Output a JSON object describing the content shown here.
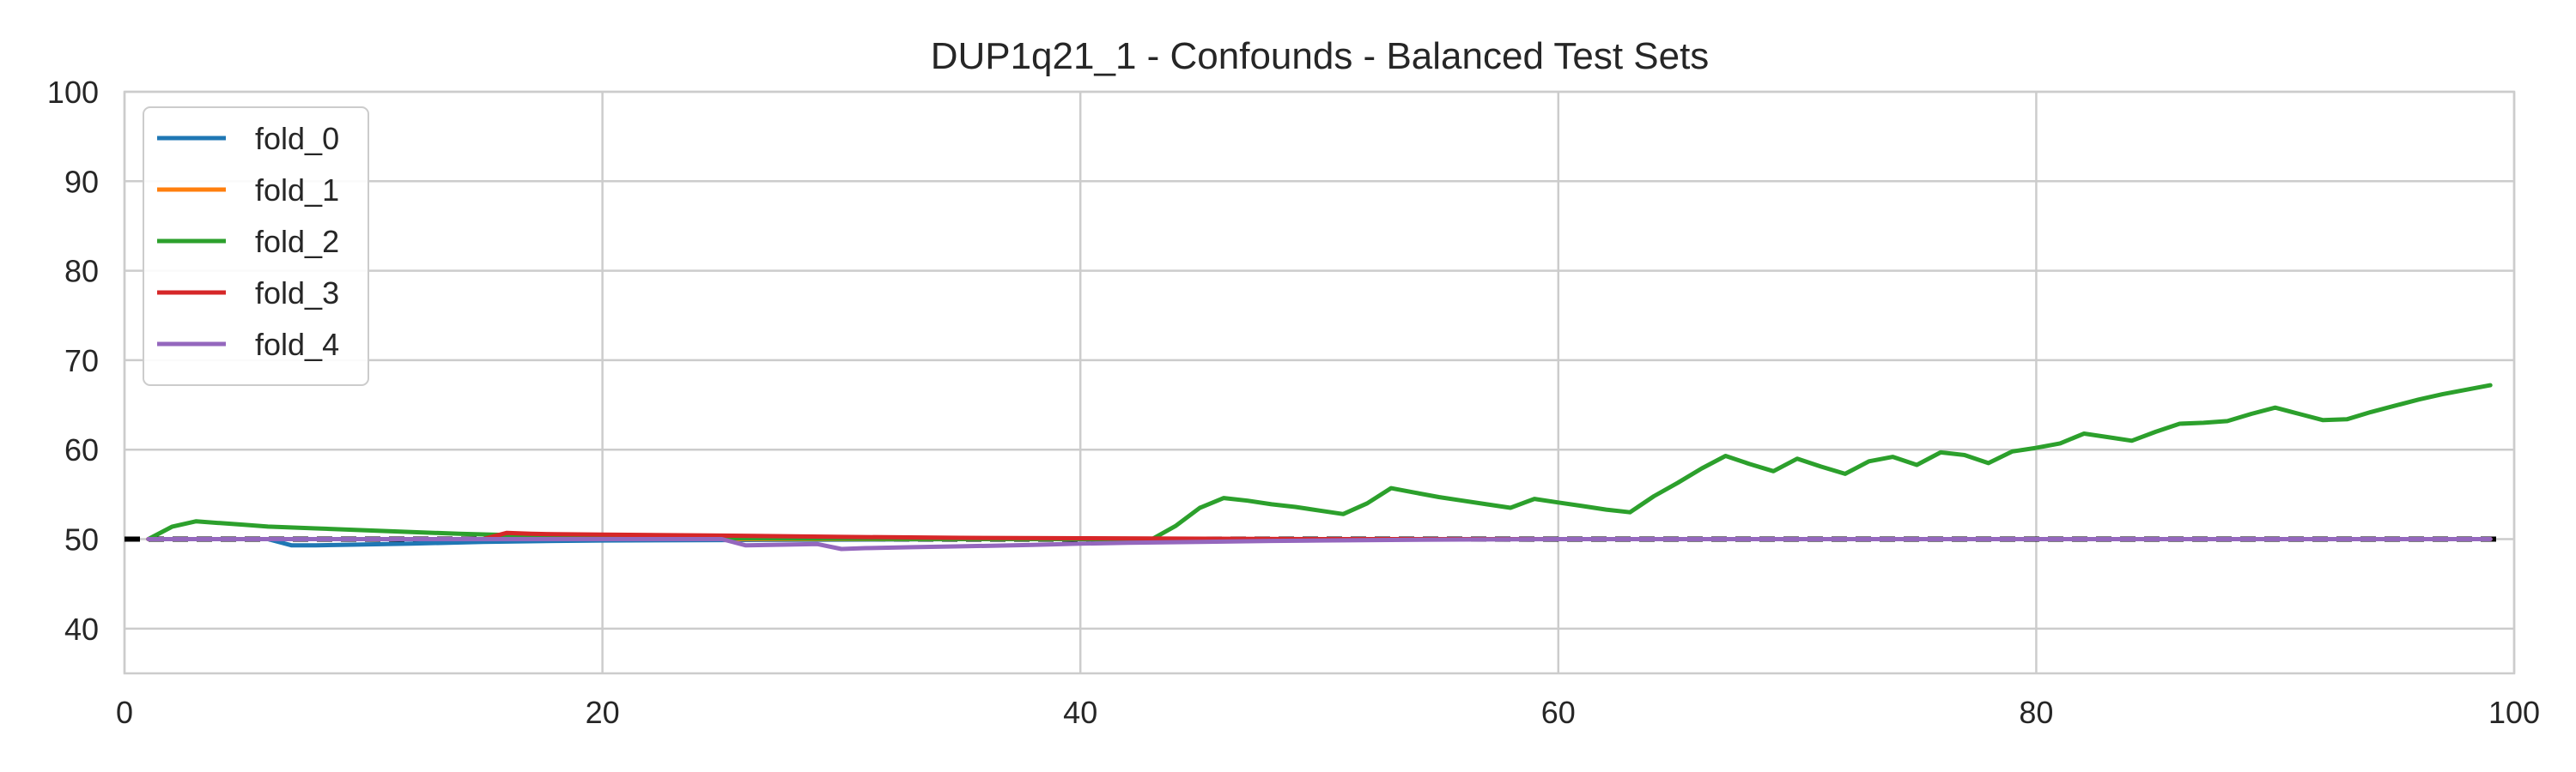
{
  "chart_data": {
    "type": "line",
    "title": "DUP1q21_1 - Confounds - Balanced Test Sets",
    "xlabel": "",
    "ylabel": "",
    "xlim": [
      0,
      100
    ],
    "ylim": [
      35,
      100
    ],
    "xticks": [
      0,
      20,
      40,
      60,
      80,
      100
    ],
    "yticks": [
      40,
      50,
      60,
      70,
      80,
      90,
      100
    ],
    "grid": true,
    "legend_position": "upper-left",
    "baseline": {
      "y": 50,
      "color": "#000000",
      "style": "dashed"
    },
    "series": [
      {
        "name": "fold_0",
        "color": "#1f77b4",
        "points": [
          [
            1,
            50
          ],
          [
            2,
            50
          ],
          [
            3,
            50
          ],
          [
            4,
            50
          ],
          [
            5,
            50
          ],
          [
            6,
            50
          ],
          [
            7,
            49.3
          ],
          [
            8,
            49.3
          ],
          [
            9,
            49.35
          ],
          [
            10,
            49.4
          ],
          [
            12,
            49.5
          ],
          [
            15,
            49.7
          ],
          [
            18,
            49.8
          ],
          [
            20,
            49.85
          ],
          [
            25,
            49.9
          ],
          [
            30,
            49.95
          ],
          [
            35,
            50
          ],
          [
            40,
            50
          ],
          [
            50,
            50
          ],
          [
            60,
            50
          ],
          [
            70,
            50
          ],
          [
            80,
            50
          ],
          [
            90,
            50
          ],
          [
            99,
            50
          ]
        ]
      },
      {
        "name": "fold_1",
        "color": "#ff7f0e",
        "points": [
          [
            1,
            50
          ],
          [
            10,
            50
          ],
          [
            20,
            50
          ],
          [
            30,
            50
          ],
          [
            40,
            50
          ],
          [
            50,
            50
          ],
          [
            60,
            50
          ],
          [
            70,
            50
          ],
          [
            80,
            50
          ],
          [
            90,
            50
          ],
          [
            99,
            50
          ]
        ]
      },
      {
        "name": "fold_2",
        "color": "#2ca02c",
        "points": [
          [
            1,
            50
          ],
          [
            2,
            51.4
          ],
          [
            3,
            52
          ],
          [
            4,
            51.8
          ],
          [
            5,
            51.6
          ],
          [
            6,
            51.4
          ],
          [
            8,
            51.2
          ],
          [
            10,
            51
          ],
          [
            12,
            50.8
          ],
          [
            14,
            50.6
          ],
          [
            16,
            50.45
          ],
          [
            18,
            50.3
          ],
          [
            20,
            50.2
          ],
          [
            25,
            50.1
          ],
          [
            30,
            50.05
          ],
          [
            35,
            50
          ],
          [
            40,
            50
          ],
          [
            43,
            50
          ],
          [
            44,
            51.5
          ],
          [
            45,
            53.5
          ],
          [
            46,
            54.6
          ],
          [
            47,
            54.3
          ],
          [
            48,
            53.9
          ],
          [
            49,
            53.6
          ],
          [
            50,
            53.2
          ],
          [
            51,
            52.8
          ],
          [
            52,
            54
          ],
          [
            53,
            55.7
          ],
          [
            54,
            55.2
          ],
          [
            55,
            54.7
          ],
          [
            56,
            54.3
          ],
          [
            57,
            53.9
          ],
          [
            58,
            53.5
          ],
          [
            59,
            54.5
          ],
          [
            60,
            54.1
          ],
          [
            61,
            53.7
          ],
          [
            62,
            53.3
          ],
          [
            63,
            53
          ],
          [
            64,
            54.8
          ],
          [
            65,
            56.3
          ],
          [
            66,
            57.9
          ],
          [
            67,
            59.3
          ],
          [
            68,
            58.4
          ],
          [
            69,
            57.6
          ],
          [
            70,
            59
          ],
          [
            71,
            58.1
          ],
          [
            72,
            57.3
          ],
          [
            73,
            58.7
          ],
          [
            74,
            59.2
          ],
          [
            75,
            58.3
          ],
          [
            76,
            59.7
          ],
          [
            77,
            59.4
          ],
          [
            78,
            58.5
          ],
          [
            79,
            59.8
          ],
          [
            80,
            60.2
          ],
          [
            81,
            60.7
          ],
          [
            82,
            61.8
          ],
          [
            83,
            61.4
          ],
          [
            84,
            61
          ],
          [
            85,
            62
          ],
          [
            86,
            62.9
          ],
          [
            87,
            63
          ],
          [
            88,
            63.2
          ],
          [
            89,
            64
          ],
          [
            90,
            64.7
          ],
          [
            91,
            64
          ],
          [
            92,
            63.3
          ],
          [
            93,
            63.4
          ],
          [
            94,
            64.2
          ],
          [
            95,
            64.9
          ],
          [
            96,
            65.6
          ],
          [
            97,
            66.2
          ],
          [
            98,
            66.7
          ],
          [
            99,
            67.2
          ]
        ]
      },
      {
        "name": "fold_3",
        "color": "#d62728",
        "points": [
          [
            1,
            50
          ],
          [
            10,
            50
          ],
          [
            15,
            50
          ],
          [
            16,
            50.7
          ],
          [
            17,
            50.6
          ],
          [
            18,
            50.55
          ],
          [
            20,
            50.5
          ],
          [
            25,
            50.4
          ],
          [
            30,
            50.25
          ],
          [
            35,
            50.15
          ],
          [
            40,
            50.1
          ],
          [
            45,
            50.05
          ],
          [
            50,
            50
          ],
          [
            60,
            50
          ],
          [
            70,
            50
          ],
          [
            80,
            50
          ],
          [
            90,
            50
          ],
          [
            99,
            50
          ]
        ]
      },
      {
        "name": "fold_4",
        "color": "#9467bd",
        "points": [
          [
            1,
            50
          ],
          [
            10,
            50
          ],
          [
            20,
            50
          ],
          [
            25,
            50
          ],
          [
            26,
            49.3
          ],
          [
            27,
            49.35
          ],
          [
            28,
            49.4
          ],
          [
            29,
            49.45
          ],
          [
            30,
            48.9
          ],
          [
            31,
            49
          ],
          [
            33,
            49.1
          ],
          [
            35,
            49.2
          ],
          [
            38,
            49.35
          ],
          [
            40,
            49.5
          ],
          [
            42,
            49.6
          ],
          [
            45,
            49.7
          ],
          [
            48,
            49.8
          ],
          [
            50,
            49.85
          ],
          [
            55,
            49.95
          ],
          [
            60,
            50
          ],
          [
            70,
            50
          ],
          [
            80,
            50
          ],
          [
            90,
            50
          ],
          [
            99,
            50
          ]
        ]
      }
    ]
  }
}
